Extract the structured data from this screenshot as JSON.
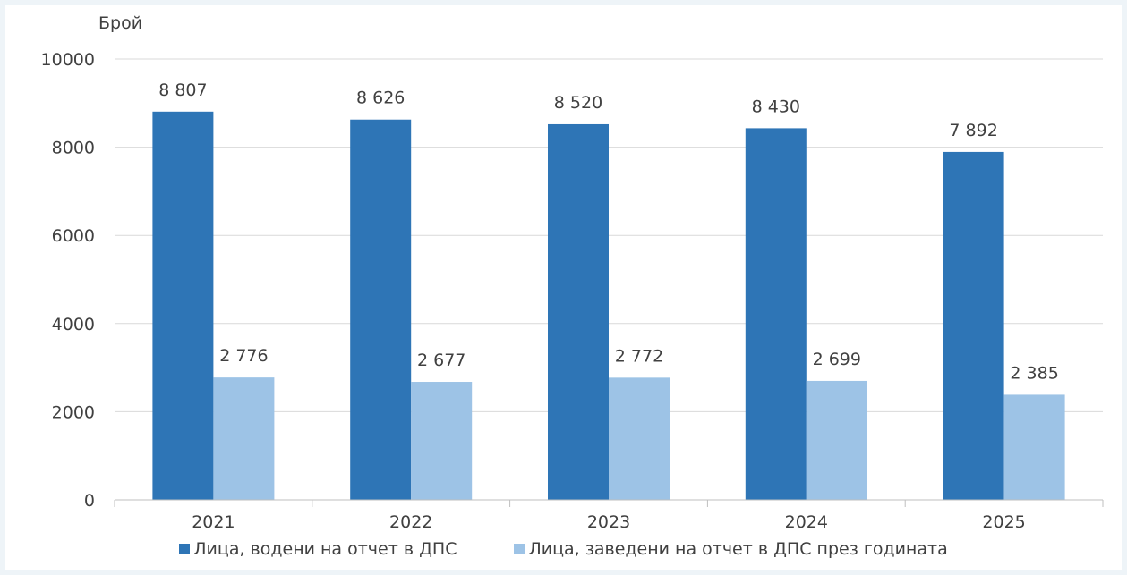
{
  "chart_data": {
    "type": "bar",
    "ylabel": "Брой",
    "ylim": [
      0,
      10000
    ],
    "yticks": [
      0,
      2000,
      4000,
      6000,
      8000,
      10000
    ],
    "grid": true,
    "legend_position": "bottom",
    "categories": [
      "2021",
      "2022",
      "2023",
      "2024",
      "2025"
    ],
    "series": [
      {
        "name": "Лица, водени на отчет в ДПС",
        "color": "#2e75b6",
        "values": [
          8807,
          8626,
          8520,
          8430,
          7892
        ],
        "labels": [
          "8 807",
          "8 626",
          "8 520",
          "8 430",
          "7 892"
        ]
      },
      {
        "name": "Лица, заведени на отчет в ДПС през годината",
        "color": "#9dc3e6",
        "values": [
          2776,
          2677,
          2772,
          2699,
          2385
        ],
        "labels": [
          "2 776",
          "2 677",
          "2 772",
          "2 699",
          "2 385"
        ]
      }
    ]
  }
}
